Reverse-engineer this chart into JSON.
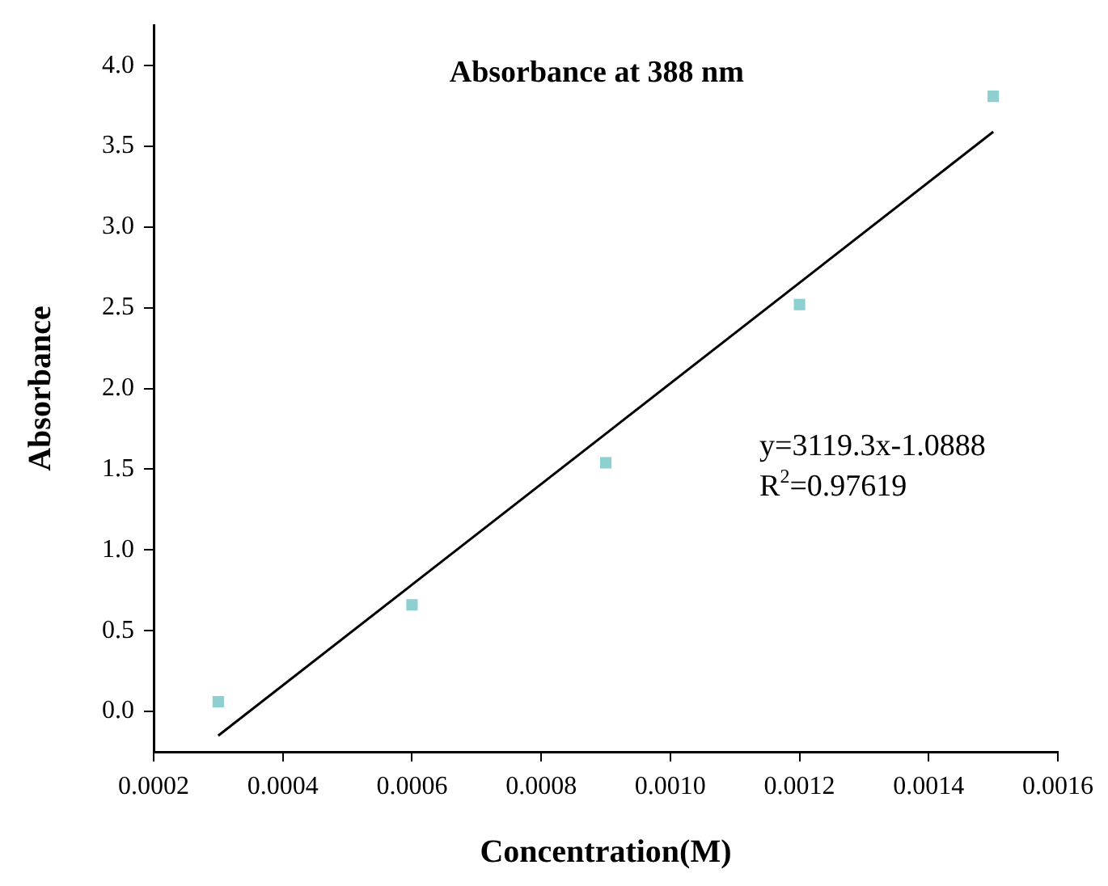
{
  "chart_data": {
    "type": "scatter",
    "title": "Absorbance at 388 nm",
    "xlabel": "Concentration(M)",
    "ylabel": "Absorbance",
    "series": [
      {
        "type": "scatter",
        "color": "#8ecfd0",
        "marker": "square",
        "x": [
          0.0003,
          0.0006,
          0.0009,
          0.0012,
          0.0015
        ],
        "values": [
          0.06,
          0.66,
          1.54,
          2.52,
          3.81
        ]
      },
      {
        "type": "line",
        "color": "#000000",
        "marker": "none",
        "x": [
          0.0003,
          0.0015
        ],
        "values": [
          -0.15,
          3.59
        ]
      }
    ],
    "annotations": [
      "y=3119.3x-1.0888",
      "R$^{2}$=0.97619"
    ],
    "xlim": [
      0.0002,
      0.0016
    ],
    "xticks": [
      {
        "value": 0.0002,
        "label": "0.0002"
      },
      {
        "value": 0.0004,
        "label": "0.0004"
      },
      {
        "value": 0.0006,
        "label": "0.0006"
      },
      {
        "value": 0.0008,
        "label": "0.0008"
      },
      {
        "value": 0.001,
        "label": "0.0010"
      },
      {
        "value": 0.0012,
        "label": "0.0012"
      },
      {
        "value": 0.0014,
        "label": "0.0014"
      },
      {
        "value": 0.0016,
        "label": "0.0016"
      }
    ],
    "ylim": [
      -0.25,
      4.25
    ],
    "yticks": [
      {
        "value": 0,
        "label": "0.0"
      },
      {
        "value": 0.5,
        "label": "0.5"
      },
      {
        "value": 1,
        "label": "1.0"
      },
      {
        "value": 1.5,
        "label": "1.5"
      },
      {
        "value": 2,
        "label": "2.0"
      },
      {
        "value": 2.5,
        "label": "2.5"
      },
      {
        "value": 3,
        "label": "3.0"
      },
      {
        "value": 3.5,
        "label": "3.5"
      },
      {
        "value": 4,
        "label": "4.0"
      }
    ],
    "grid": false,
    "legend": false
  }
}
